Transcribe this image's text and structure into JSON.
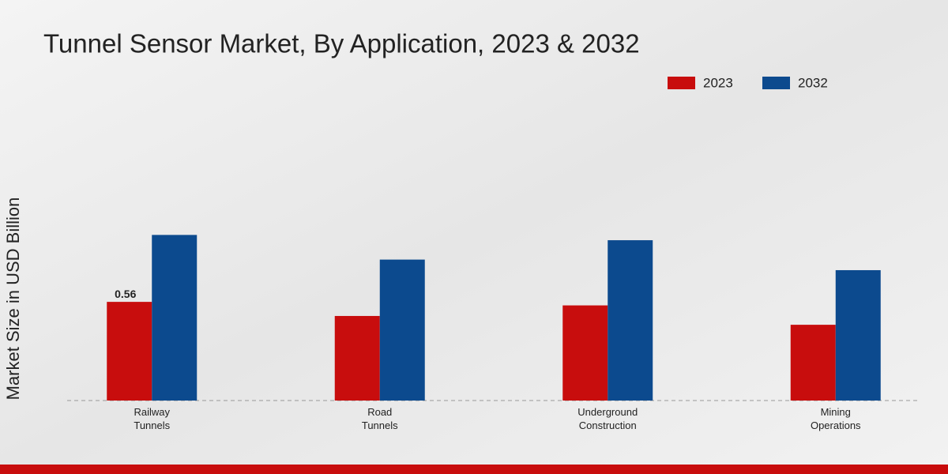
{
  "chart_data": {
    "type": "bar",
    "title": "Tunnel Sensor Market, By Application, 2023 & 2032",
    "y_label": "Market Size in USD Billion",
    "categories": [
      [
        "Railway",
        "Tunnels"
      ],
      [
        "Road",
        "Tunnels"
      ],
      [
        "Underground",
        "Construction"
      ],
      [
        "Mining",
        "Operations"
      ]
    ],
    "series": [
      {
        "name": "2023",
        "color": "#c80d0d",
        "values": [
          0.56,
          0.48,
          0.54,
          0.43
        ],
        "value_labels": [
          "0.56",
          null,
          null,
          null
        ]
      },
      {
        "name": "2032",
        "color": "#0c4a8e",
        "values": [
          0.94,
          0.8,
          0.91,
          0.74
        ]
      }
    ],
    "legend": "top-right"
  }
}
